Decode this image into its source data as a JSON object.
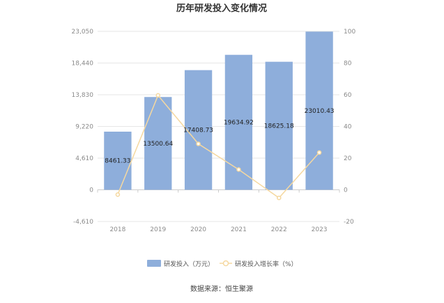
{
  "chart_data": {
    "type": "bar",
    "title": "历年研发投入变化情况",
    "categories": [
      "2018",
      "2019",
      "2020",
      "2021",
      "2022",
      "2023"
    ],
    "series": [
      {
        "name": "研发投入（万元）",
        "type": "bar",
        "axis": "left",
        "values": [
          8461.33,
          13500.64,
          17408.73,
          19634.92,
          18625.18,
          23010.43
        ],
        "labels": [
          "8461.33",
          "13500.64",
          "17408.73",
          "19634.92",
          "18625.18",
          "23010.43"
        ],
        "color": "#8eaedb"
      },
      {
        "name": "研发投入增长率（%）",
        "type": "line",
        "axis": "right",
        "values": [
          -3,
          59.6,
          29,
          12.8,
          -5.1,
          23.5
        ],
        "color": "#f5d8a0"
      }
    ],
    "y_left": {
      "min": -4610,
      "max": 23050,
      "ticks": [
        "-4,610",
        "0",
        "4,610",
        "9,220",
        "13,830",
        "18,440",
        "23,050"
      ]
    },
    "y_right": {
      "min": -20,
      "max": 100,
      "ticks": [
        "-20",
        "0",
        "20",
        "40",
        "60",
        "80",
        "100"
      ]
    },
    "grid": true,
    "legend_position": "bottom"
  },
  "source_text": "数据来源：恒生聚源"
}
